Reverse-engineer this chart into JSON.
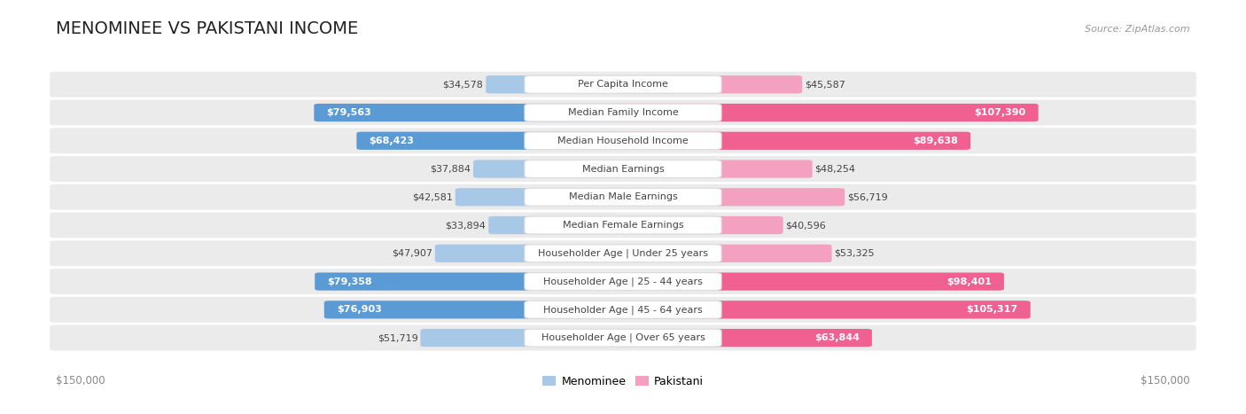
{
  "title": "MENOMINEE VS PAKISTANI INCOME",
  "source": "Source: ZipAtlas.com",
  "categories": [
    "Per Capita Income",
    "Median Family Income",
    "Median Household Income",
    "Median Earnings",
    "Median Male Earnings",
    "Median Female Earnings",
    "Householder Age | Under 25 years",
    "Householder Age | 25 - 44 years",
    "Householder Age | 45 - 64 years",
    "Householder Age | Over 65 years"
  ],
  "menominee_values": [
    34578,
    79563,
    68423,
    37884,
    42581,
    33894,
    47907,
    79358,
    76903,
    51719
  ],
  "pakistani_values": [
    45587,
    107390,
    89638,
    48254,
    56719,
    40596,
    53325,
    98401,
    105317,
    63844
  ],
  "menominee_labels": [
    "$34,578",
    "$79,563",
    "$68,423",
    "$37,884",
    "$42,581",
    "$33,894",
    "$47,907",
    "$79,358",
    "$76,903",
    "$51,719"
  ],
  "pakistani_labels": [
    "$45,587",
    "$107,390",
    "$89,638",
    "$48,254",
    "$56,719",
    "$40,596",
    "$53,325",
    "$98,401",
    "$105,317",
    "$63,844"
  ],
  "max_value": 150000,
  "color_menominee_light": "#A8C8E8",
  "color_menominee_dark": "#5B9BD5",
  "color_pakistani_light": "#F4A0C0",
  "color_pakistani_dark": "#F06090",
  "color_row_bg": "#EBEBEB",
  "white_label_threshold_men": 60000,
  "white_label_threshold_pak": 60000,
  "title_fontsize": 14,
  "label_fontsize": 8,
  "value_fontsize": 8
}
